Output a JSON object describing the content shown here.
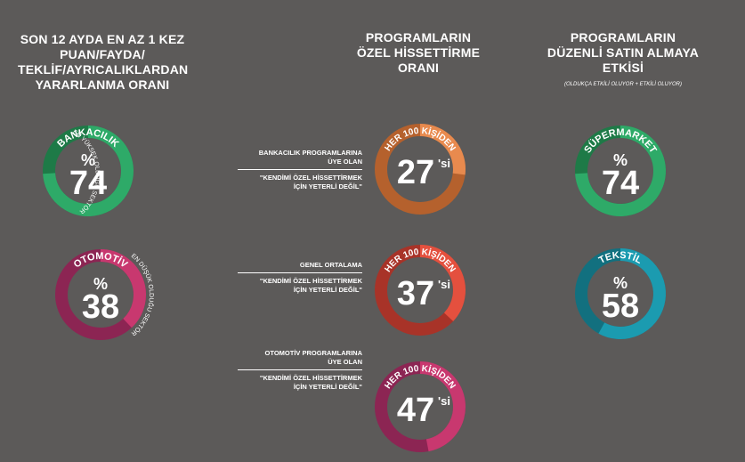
{
  "columns": [
    {
      "title_lines": [
        "SON 12 AYDA EN AZ 1 KEZ",
        "PUAN/FAYDA/",
        "TEKLİF/AYRICALIKLARDAN",
        "YARARLANMA ORANI"
      ],
      "note": ""
    },
    {
      "title_lines": [
        "PROGRAMLARIN",
        "ÖZEL HİSSETTİRME",
        "ORANI"
      ],
      "note": ""
    },
    {
      "title_lines": [
        "PROGRAMLARIN",
        "DÜZENLİ SATIN ALMAYA",
        "ETKİSİ"
      ],
      "note": "(OLDUKÇA ETKİLİ OLUYOR + ETKİLİ OLUYOR)"
    }
  ],
  "rows": [
    {
      "head_lines": [
        "BANKACILIK PROGRAMLARINA",
        "ÜYE OLAN"
      ],
      "quote_lines": [
        "\"KENDİMİ ÖZEL HİSSETTİRMEK",
        "İÇİN YETERLİ DEĞİL\""
      ]
    },
    {
      "head_lines": [
        "GENEL ORTALAMA"
      ],
      "quote_lines": [
        "\"KENDİMİ ÖZEL HİSSETTİRMEK",
        "İÇİN YETERLİ DEĞİL\""
      ]
    },
    {
      "head_lines": [
        "OTOMOTİV PROGRAMLARINA",
        "ÜYE OLAN"
      ],
      "quote_lines": [
        "\"KENDİMİ ÖZEL HİSSETTİRMEK",
        "İÇİN YETERLİ DEĞİL\""
      ]
    }
  ],
  "chart_data": [
    {
      "type": "pie",
      "categories": [
        "BANKACILIK"
      ],
      "values": [
        74
      ],
      "unit": "%",
      "side_note": "EN YÜKSEK OLDUĞU SEKTÖR",
      "color": "#2eaa68",
      "track": "#1e7a47"
    },
    {
      "type": "pie",
      "categories": [
        "OTOMOTİV"
      ],
      "values": [
        38
      ],
      "unit": "%",
      "side_note": "EN DÜŞÜK OLDUĞU SEKTÖR",
      "color": "#c8386f",
      "track": "#8c2553"
    },
    {
      "type": "pie",
      "categories": [
        "HER 100 KİŞİDEN"
      ],
      "values": [
        27
      ],
      "suffix": "'si",
      "color": "#e88a4e",
      "track": "#b5612d"
    },
    {
      "type": "pie",
      "categories": [
        "HER 100 KİŞİDEN"
      ],
      "values": [
        37
      ],
      "suffix": "'si",
      "color": "#e4503e",
      "track": "#a83328"
    },
    {
      "type": "pie",
      "categories": [
        "HER 100 KİŞİDEN"
      ],
      "values": [
        47
      ],
      "suffix": "'si",
      "color": "#c8386f",
      "track": "#8c2553"
    },
    {
      "type": "pie",
      "categories": [
        "SÜPERMARKET"
      ],
      "values": [
        74
      ],
      "unit": "%",
      "color": "#2eaa68",
      "track": "#1e7a47"
    },
    {
      "type": "pie",
      "categories": [
        "TEKSTİL"
      ],
      "values": [
        58
      ],
      "unit": "%",
      "color": "#1b9bb0",
      "track": "#12707f"
    }
  ]
}
